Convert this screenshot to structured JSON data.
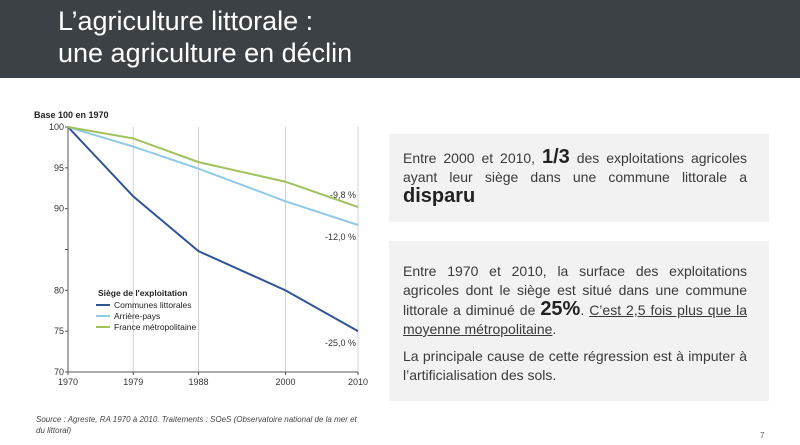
{
  "slide": {
    "title_line1": "L’agriculture littorale :",
    "title_line2": "une agriculture en déclin",
    "page_number": "7"
  },
  "box1": {
    "p1_before": "Entre 2000 et 2010, ",
    "p1_big": "1/3",
    "p1_after": " des exploitations agricoles ayant leur siège dans une commune littorale a ",
    "p1_emph": "disparu"
  },
  "box2": {
    "p1_before": "Entre 1970 et 2010, la surface des exploitations agricoles dont le siège est situé dans une commune littorale a diminué de ",
    "p1_big": "25%",
    "p1_dot": ". ",
    "p1_underline": "C’est 2,5 fois plus que la moyenne métropolitaine",
    "p1_end": ".",
    "p2": "La principale cause de cette régression est à imputer à l’artificialisation des sols."
  },
  "source": "Source : Agreste, RA 1970 à 2010. Traitements : SOeS (Observatoire national de la mer et du littoral)",
  "chart_data": {
    "type": "line",
    "title": "Base 100 en 1970",
    "x": [
      1970,
      1979,
      1988,
      2000,
      2010
    ],
    "xlim": [
      1970,
      2010
    ],
    "ylim": [
      70,
      100
    ],
    "yticks": [
      70,
      75,
      80,
      85,
      90,
      95,
      100
    ],
    "ytick_labels": [
      "70",
      "75",
      "80",
      "",
      "90",
      "95",
      "100"
    ],
    "grid": "vertical",
    "legend_title": "Siège de l'exploitation",
    "legend_placement": "lower-left",
    "series": [
      {
        "name": "Communes littorales",
        "color": "#2f5597",
        "values": [
          100,
          91.5,
          84.8,
          80.0,
          75.0
        ],
        "end_label": "-25,0 %"
      },
      {
        "name": "Arrière-pays",
        "color": "#8fcbe6",
        "values": [
          100,
          97.6,
          94.9,
          90.9,
          88.0
        ],
        "end_label": "-12,0 %"
      },
      {
        "name": "France métropolitaine",
        "color": "#9fc25b",
        "values": [
          100,
          98.6,
          95.7,
          93.3,
          90.2
        ],
        "end_label": "-9,8 %"
      }
    ]
  }
}
